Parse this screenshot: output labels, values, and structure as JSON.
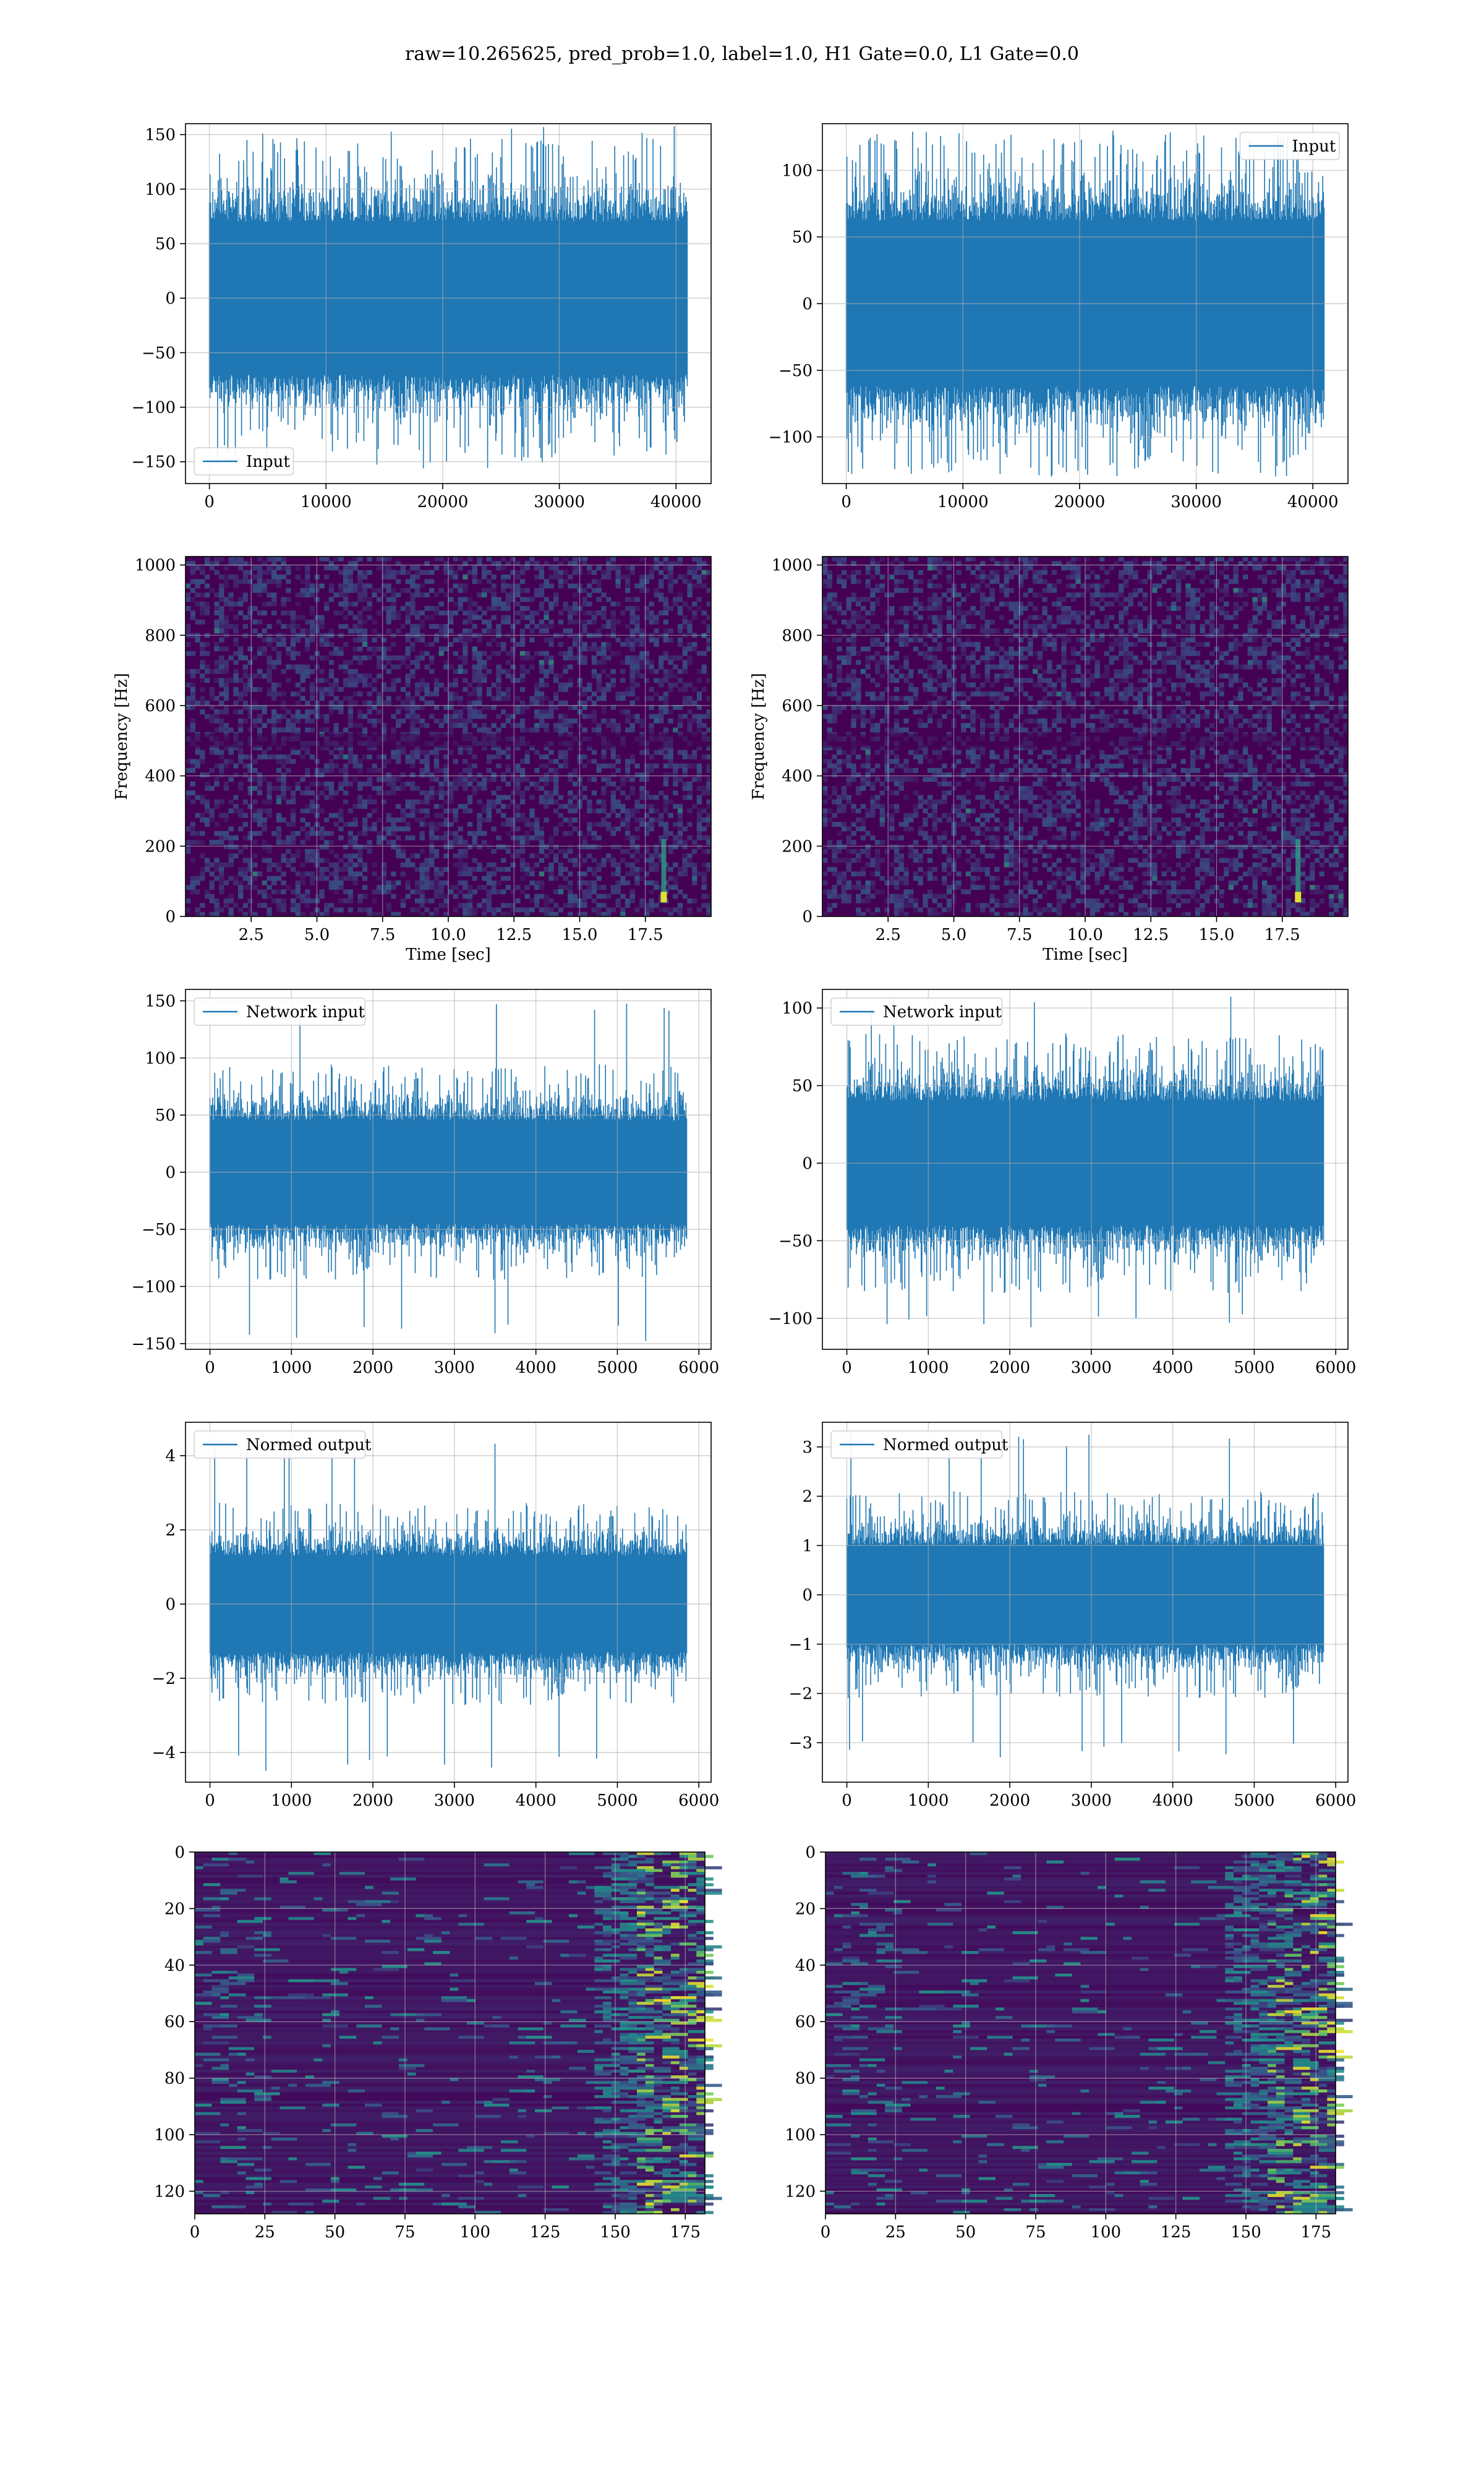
{
  "title": "raw=10.265625, pred_prob=1.0, label=1.0, H1 Gate=0.0, L1 Gate=0.0",
  "colors": {
    "series": "#1f77b4",
    "grid": "#b0b0b0",
    "viridis_low": "#440154",
    "viridis_high": "#fde725"
  },
  "chart_data": [
    {
      "id": "input-h1",
      "type": "line",
      "legend": [
        "Input"
      ],
      "legend_loc": "lower-left",
      "x_range": [
        0,
        40960
      ],
      "xlim": [
        -2048,
        43008
      ],
      "ylim": [
        -170,
        160
      ],
      "xticks": [
        0,
        10000,
        20000,
        30000,
        40000
      ],
      "yticks": [
        -150,
        -100,
        -50,
        0,
        50,
        100,
        150
      ],
      "core_amplitude": 70,
      "peak_amplitude": 158,
      "grid": true
    },
    {
      "id": "input-l1",
      "type": "line",
      "legend": [
        "Input"
      ],
      "legend_loc": "upper-right",
      "x_range": [
        0,
        40960
      ],
      "xlim": [
        -2048,
        43008
      ],
      "ylim": [
        -135,
        135
      ],
      "xticks": [
        0,
        10000,
        20000,
        30000,
        40000
      ],
      "yticks": [
        -100,
        -50,
        0,
        50,
        100
      ],
      "core_amplitude": 62,
      "peak_amplitude": 128,
      "grid": true
    },
    {
      "id": "spectrogram-h1",
      "type": "heatmap",
      "xlabel": "Time [sec]",
      "ylabel": "Frequency [Hz]",
      "xlim": [
        0,
        20
      ],
      "ylim": [
        0,
        1024
      ],
      "xticks": [
        2.5,
        5.0,
        7.5,
        10.0,
        12.5,
        15.0,
        17.5
      ],
      "yticks": [
        0,
        200,
        400,
        600,
        800,
        1000
      ],
      "chirp_time": 18.2,
      "grid": true
    },
    {
      "id": "spectrogram-l1",
      "type": "heatmap",
      "xlabel": "Time [sec]",
      "ylabel": "Frequency [Hz]",
      "xlim": [
        0,
        20
      ],
      "ylim": [
        0,
        1024
      ],
      "xticks": [
        2.5,
        5.0,
        7.5,
        10.0,
        12.5,
        15.0,
        17.5
      ],
      "yticks": [
        0,
        200,
        400,
        600,
        800,
        1000
      ],
      "chirp_time": 18.1,
      "grid": true
    },
    {
      "id": "network-input-h1",
      "type": "line",
      "legend": [
        "Network input"
      ],
      "legend_loc": "upper-left",
      "x_range": [
        0,
        5850
      ],
      "xlim": [
        -300,
        6150
      ],
      "ylim": [
        -155,
        160
      ],
      "xticks": [
        0,
        1000,
        2000,
        3000,
        4000,
        5000,
        6000
      ],
      "yticks": [
        -150,
        -100,
        -50,
        0,
        50,
        100,
        150
      ],
      "core_amplitude": 45,
      "peak_amplitude": 148,
      "grid": true
    },
    {
      "id": "network-input-l1",
      "type": "line",
      "legend": [
        "Network input"
      ],
      "legend_loc": "upper-left",
      "x_range": [
        0,
        5850
      ],
      "xlim": [
        -300,
        6150
      ],
      "ylim": [
        -120,
        112
      ],
      "xticks": [
        0,
        1000,
        2000,
        3000,
        4000,
        5000,
        6000
      ],
      "yticks": [
        -100,
        -50,
        0,
        50,
        100
      ],
      "core_amplitude": 40,
      "peak_amplitude": 108,
      "grid": true
    },
    {
      "id": "normed-output-h1",
      "type": "line",
      "legend": [
        "Normed output"
      ],
      "legend_loc": "upper-left",
      "x_range": [
        0,
        5850
      ],
      "xlim": [
        -300,
        6150
      ],
      "ylim": [
        -4.8,
        4.9
      ],
      "xticks": [
        0,
        1000,
        2000,
        3000,
        4000,
        5000,
        6000
      ],
      "yticks": [
        -4,
        -2,
        0,
        2,
        4
      ],
      "core_amplitude": 1.3,
      "peak_amplitude": 4.5,
      "grid": true
    },
    {
      "id": "normed-output-l1",
      "type": "line",
      "legend": [
        "Normed output"
      ],
      "legend_loc": "upper-left",
      "x_range": [
        0,
        5850
      ],
      "xlim": [
        -300,
        6150
      ],
      "ylim": [
        -3.8,
        3.5
      ],
      "xticks": [
        0,
        1000,
        2000,
        3000,
        4000,
        5000,
        6000
      ],
      "yticks": [
        -3,
        -2,
        -1,
        0,
        1,
        2,
        3
      ],
      "core_amplitude": 1.0,
      "peak_amplitude": 3.3,
      "grid": true
    },
    {
      "id": "feature-map-h1",
      "type": "heatmap",
      "xlim": [
        0,
        182
      ],
      "ylim": [
        128,
        0
      ],
      "xticks": [
        0,
        25,
        50,
        75,
        100,
        125,
        150,
        175
      ],
      "yticks": [
        0,
        20,
        40,
        60,
        80,
        100,
        120
      ],
      "rows": 128,
      "cols": 182,
      "grid": true
    },
    {
      "id": "feature-map-l1",
      "type": "heatmap",
      "xlim": [
        0,
        182
      ],
      "ylim": [
        128,
        0
      ],
      "xticks": [
        0,
        25,
        50,
        75,
        100,
        125,
        150,
        175
      ],
      "yticks": [
        0,
        20,
        40,
        60,
        80,
        100,
        120
      ],
      "rows": 128,
      "cols": 182,
      "grid": true
    }
  ]
}
